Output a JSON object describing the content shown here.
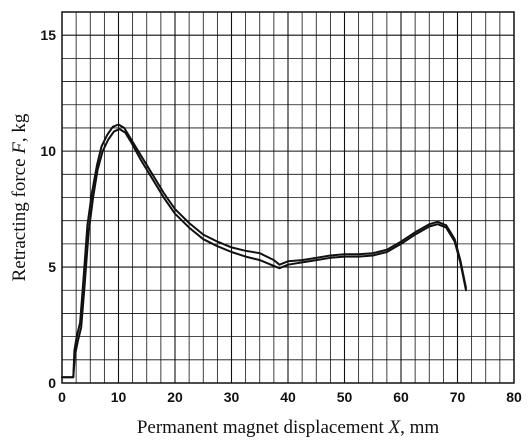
{
  "chart_data": {
    "type": "line",
    "title": "",
    "xlabel": {
      "before": "Permanent magnet displacement ",
      "var": "X",
      "after": ", mm"
    },
    "ylabel": {
      "before": "Retracting force ",
      "var": "F",
      "after": ", kg"
    },
    "xlim": [
      0,
      80
    ],
    "ylim": [
      0,
      16
    ],
    "x_ticks": [
      "0",
      "10",
      "20",
      "30",
      "40",
      "50",
      "60",
      "70",
      "80"
    ],
    "x_tick_values": [
      0,
      10,
      20,
      30,
      40,
      50,
      60,
      70,
      80
    ],
    "y_ticks": [
      "0",
      "5",
      "10",
      "15"
    ],
    "y_tick_values": [
      0,
      5,
      10,
      15
    ],
    "grid": true,
    "grid_x_step": 2.5,
    "grid_y_step": 1,
    "line_color": "#111111",
    "series": [
      {
        "x": [
          0,
          2.0,
          2.2,
          2.6,
          3.2,
          3.8,
          4.5,
          5.3,
          6.2,
          7.0,
          8.0,
          9.0,
          10.0,
          11.0,
          12.0,
          14.0,
          16.0,
          18.0,
          20.0,
          22.5,
          25.0,
          27.5,
          30.0,
          32.5,
          35.0,
          37.5,
          38.5,
          40.0,
          42.5,
          45.0,
          47.5,
          50.0,
          52.5,
          55.0,
          57.5,
          60.0,
          62.5,
          65.0,
          66.5,
          68.0,
          69.5,
          70.5,
          71.5
        ],
        "y": [
          0.25,
          0.25,
          1.4,
          2.0,
          2.6,
          4.5,
          6.8,
          8.2,
          9.4,
          10.2,
          10.7,
          11.05,
          11.15,
          11.0,
          10.6,
          9.8,
          9.0,
          8.2,
          7.5,
          6.9,
          6.4,
          6.1,
          5.85,
          5.7,
          5.6,
          5.3,
          5.1,
          5.25,
          5.3,
          5.4,
          5.5,
          5.55,
          5.55,
          5.6,
          5.75,
          6.1,
          6.5,
          6.85,
          6.95,
          6.8,
          6.2,
          5.3,
          4.1
        ]
      },
      {
        "x": [
          0,
          2.0,
          2.3,
          2.8,
          3.4,
          4.0,
          4.7,
          5.5,
          6.3,
          7.2,
          8.2,
          9.2,
          10.2,
          11.2,
          12.2,
          14.0,
          16.0,
          18.0,
          20.0,
          22.5,
          25.0,
          27.5,
          30.0,
          32.5,
          35.0,
          37.5,
          38.5,
          40.0,
          42.5,
          45.0,
          47.5,
          50.0,
          52.5,
          55.0,
          57.5,
          60.0,
          62.5,
          65.0,
          66.5,
          68.0,
          69.5,
          70.5,
          71.5
        ],
        "y": [
          0.25,
          0.25,
          1.2,
          1.8,
          2.4,
          4.2,
          6.5,
          8.0,
          9.2,
          10.0,
          10.5,
          10.85,
          10.95,
          10.8,
          10.4,
          9.6,
          8.8,
          8.0,
          7.3,
          6.7,
          6.2,
          5.9,
          5.65,
          5.45,
          5.3,
          5.05,
          4.95,
          5.1,
          5.2,
          5.3,
          5.4,
          5.45,
          5.45,
          5.5,
          5.65,
          6.0,
          6.4,
          6.75,
          6.85,
          6.7,
          6.1,
          5.2,
          4.0
        ]
      }
    ]
  }
}
